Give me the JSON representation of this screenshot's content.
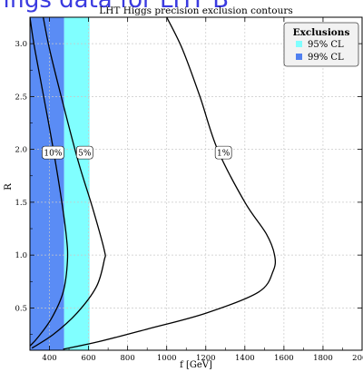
{
  "banner_text": "nfigs data for LHT B",
  "chart_data": {
    "type": "line",
    "title": "LHT Higgs precision exclusion contours",
    "xlabel": "f [GeV]",
    "ylabel": "R",
    "xlim": [
      300,
      2000
    ],
    "ylim": [
      0.1,
      3.25
    ],
    "x_ticks": [
      400,
      600,
      800,
      1000,
      1200,
      1400,
      1600,
      1800,
      2000
    ],
    "y_ticks": [
      0.5,
      1.0,
      1.5,
      2.0,
      2.5,
      3.0
    ],
    "x_tick_labels": [
      "400",
      "600",
      "800",
      "1000",
      "1200",
      "1400",
      "1600",
      "1800",
      "2000"
    ],
    "y_tick_labels": [
      "0.5",
      "1.0",
      "1.5",
      "2.0",
      "2.5",
      "3.0"
    ],
    "grid": true,
    "legend": {
      "title": "Exclusions",
      "placement": "top-right",
      "entries": [
        {
          "label": "95% CL",
          "color": "#80ffff"
        },
        {
          "label": "99% CL",
          "color": "#5080f0"
        }
      ]
    },
    "bands": [
      {
        "name": "99% CL",
        "x_from": 300,
        "x_to": 475,
        "color": "#5a8cf5"
      },
      {
        "name": "95% CL",
        "x_from": 475,
        "x_to": 605,
        "color": "#80ffff"
      }
    ],
    "series": [
      {
        "name": "10%",
        "label_at": {
          "x": 418,
          "y": 1.97
        },
        "points": [
          [
            300,
            3.25
          ],
          [
            320,
            3.0
          ],
          [
            360,
            2.6
          ],
          [
            410,
            2.1
          ],
          [
            455,
            1.6
          ],
          [
            485,
            1.2
          ],
          [
            492,
            0.95
          ],
          [
            470,
            0.65
          ],
          [
            410,
            0.4
          ],
          [
            340,
            0.22
          ],
          [
            300,
            0.14
          ]
        ]
      },
      {
        "name": "5%",
        "label_at": {
          "x": 580,
          "y": 1.97
        },
        "points": [
          [
            368,
            3.25
          ],
          [
            400,
            2.95
          ],
          [
            460,
            2.5
          ],
          [
            545,
            1.9
          ],
          [
            620,
            1.45
          ],
          [
            680,
            1.05
          ],
          [
            680,
            0.95
          ],
          [
            640,
            0.7
          ],
          [
            540,
            0.45
          ],
          [
            420,
            0.25
          ],
          [
            310,
            0.12
          ]
        ]
      },
      {
        "name": "1%",
        "label_at": {
          "x": 1290,
          "y": 1.97
        },
        "points": [
          [
            1000,
            3.25
          ],
          [
            1080,
            2.95
          ],
          [
            1170,
            2.5
          ],
          [
            1260,
            2.0
          ],
          [
            1400,
            1.5
          ],
          [
            1510,
            1.2
          ],
          [
            1552,
            1.0
          ],
          [
            1545,
            0.85
          ],
          [
            1470,
            0.65
          ],
          [
            1200,
            0.45
          ],
          [
            900,
            0.3
          ],
          [
            650,
            0.18
          ],
          [
            470,
            0.11
          ]
        ]
      }
    ],
    "colors": {
      "grid": "#c8c8c8",
      "curve": "#000000",
      "axis": "#000000"
    }
  }
}
